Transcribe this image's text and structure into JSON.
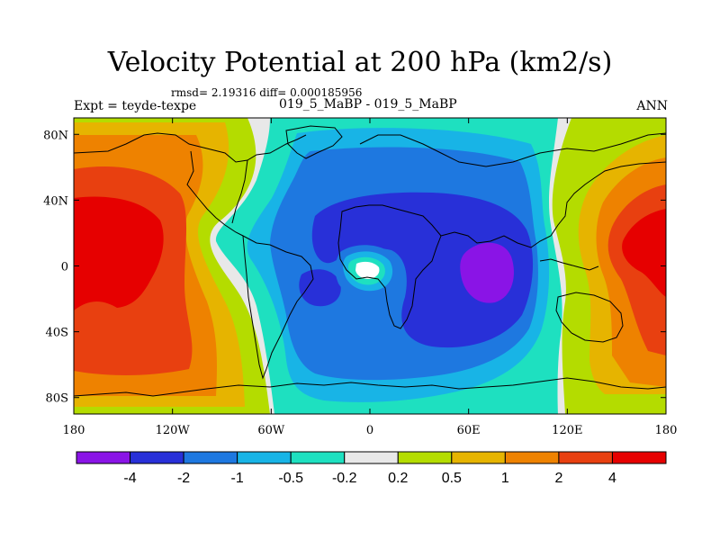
{
  "chart_data": {
    "type": "heatmap",
    "title": "Velocity Potential at 200 hPa (km2/s)",
    "rmsd_text": "rmsd= 2.19316 diff= 0.000185956",
    "left_label": "Expt = teyde-texpe",
    "center_label": "019_5_MaBP - 019_5_MaBP",
    "right_label": "ANN",
    "x_ticks": [
      "180",
      "120W",
      "60W",
      "0",
      "60E",
      "120E",
      "180"
    ],
    "y_ticks": [
      "80N",
      "40N",
      "0",
      "40S",
      "80S"
    ],
    "xlim": [
      -180,
      180
    ],
    "ylim": [
      -90,
      90
    ],
    "colorbar": {
      "levels": [
        "-4",
        "-2",
        "-1",
        "-0.5",
        "-0.2",
        "0.2",
        "0.5",
        "1",
        "2",
        "4"
      ],
      "colors": [
        "#8a14e6",
        "#2830d8",
        "#1e78e0",
        "#18b4e6",
        "#1ee0c0",
        "#e8e8e8",
        "#b4dc00",
        "#e6b400",
        "#ee8200",
        "#e84010",
        "#e60000"
      ]
    },
    "notable_values": [
      {
        "region": "tropical Pacific near 180",
        "approx_value": "> 4"
      },
      {
        "region": "Indian Ocean near 60E, 0",
        "approx_value": "< -4"
      },
      {
        "region": "Gulf of Guinea near 0, 0",
        "approx_value": "between -0.2 and 0.2"
      }
    ]
  }
}
